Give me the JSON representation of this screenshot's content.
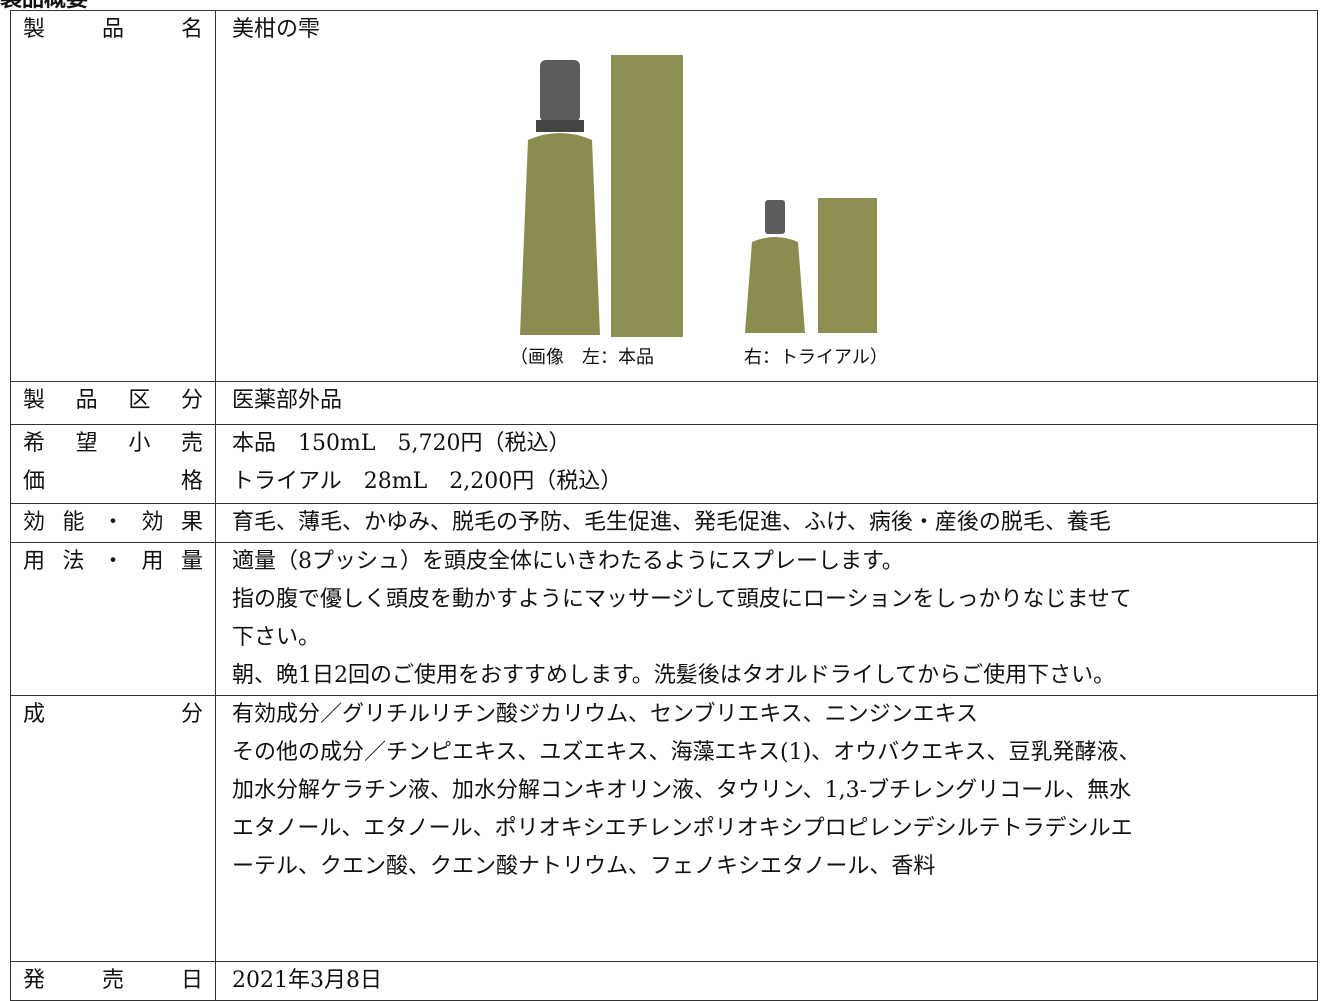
{
  "heading": "製品概要",
  "table": {
    "rows": [
      {
        "label": [
          "製品名"
        ],
        "value": [
          "美柑の雫"
        ],
        "caption": "（画像　左：本品　　　　　右：トライアル）"
      },
      {
        "label": [
          "製品区分"
        ],
        "value": [
          "医薬部外品"
        ]
      },
      {
        "label": [
          "希望小売",
          "価格"
        ],
        "value": [
          "本品　150mL　5,720円（税込）",
          "トライアル　28mL　2,200円（税込）"
        ]
      },
      {
        "label": [
          "効能・効果"
        ],
        "value": [
          "育毛、薄毛、かゆみ、脱毛の予防、毛生促進、発毛促進、ふけ、病後・産後の脱毛、養毛"
        ]
      },
      {
        "label": [
          "用法・用量"
        ],
        "value": [
          "適量（8プッシュ）を頭皮全体にいきわたるようにスプレーします。",
          "指の腹で優しく頭皮を動かすようにマッサージして頭皮にローションをしっかりなじませて",
          "下さい。",
          "朝、晩1日2回のご使用をおすすめします。洗髪後はタオルドライしてからご使用下さい。"
        ]
      },
      {
        "label": [
          "成分"
        ],
        "value": [
          "有効成分／グリチルリチン酸ジカリウム、センブリエキス、ニンジンエキス",
          "その他の成分／チンピエキス、ユズエキス、海藻エキス(1)、オウバクエキス、豆乳発酵液、",
          "加水分解ケラチン液、加水分解コンキオリン液、タウリン、1,3-ブチレングリコール、無水",
          "エタノール、エタノール、ポリオキシエチレンポリオキシプロピレンデシルテトラデシルエ",
          "ーテル、クエン酸、クエン酸ナトリウム、フェノキシエタノール、香料"
        ]
      },
      {
        "label": [
          "発売日"
        ],
        "value": [
          "2021年3月8日"
        ]
      }
    ]
  }
}
